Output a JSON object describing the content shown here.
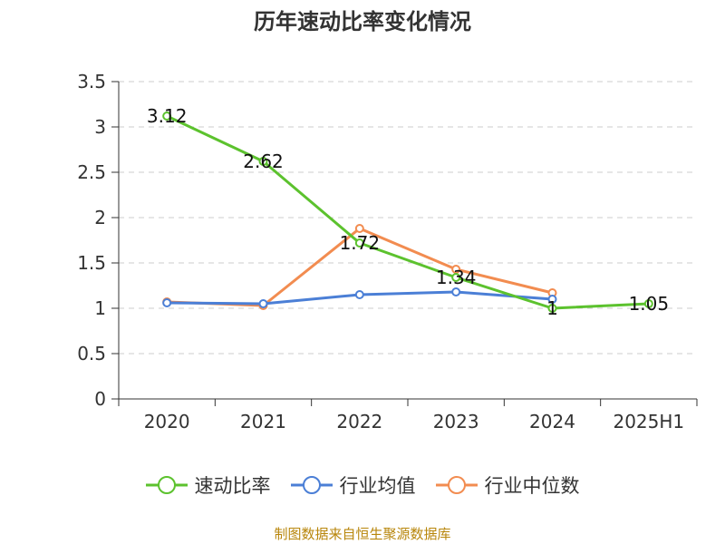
{
  "chart_data": {
    "type": "line",
    "title": "历年速动比率变化情况",
    "categories": [
      "2020",
      "2021",
      "2022",
      "2023",
      "2024",
      "2025H1"
    ],
    "ylim": [
      0,
      3.5
    ],
    "yticks": [
      "0",
      "0.5",
      "1",
      "1.5",
      "2",
      "2.5",
      "3",
      "3.5"
    ],
    "grid": true,
    "legend_position": "bottom",
    "series": [
      {
        "name": "速动比率",
        "color": "#5cc22e",
        "values": [
          3.12,
          2.62,
          1.72,
          1.34,
          1.0,
          1.05
        ],
        "data_labels": [
          "3.12",
          "2.62",
          "1.72",
          "1.34",
          "1",
          "1.05"
        ]
      },
      {
        "name": "行业均值",
        "color": "#4b7fd6",
        "values": [
          1.06,
          1.05,
          1.15,
          1.18,
          1.1,
          null
        ]
      },
      {
        "name": "行业中位数",
        "color": "#f28c50",
        "values": [
          1.07,
          1.03,
          1.88,
          1.43,
          1.17,
          null
        ]
      }
    ]
  },
  "footer": {
    "source": "制图数据来自恒生聚源数据库"
  }
}
